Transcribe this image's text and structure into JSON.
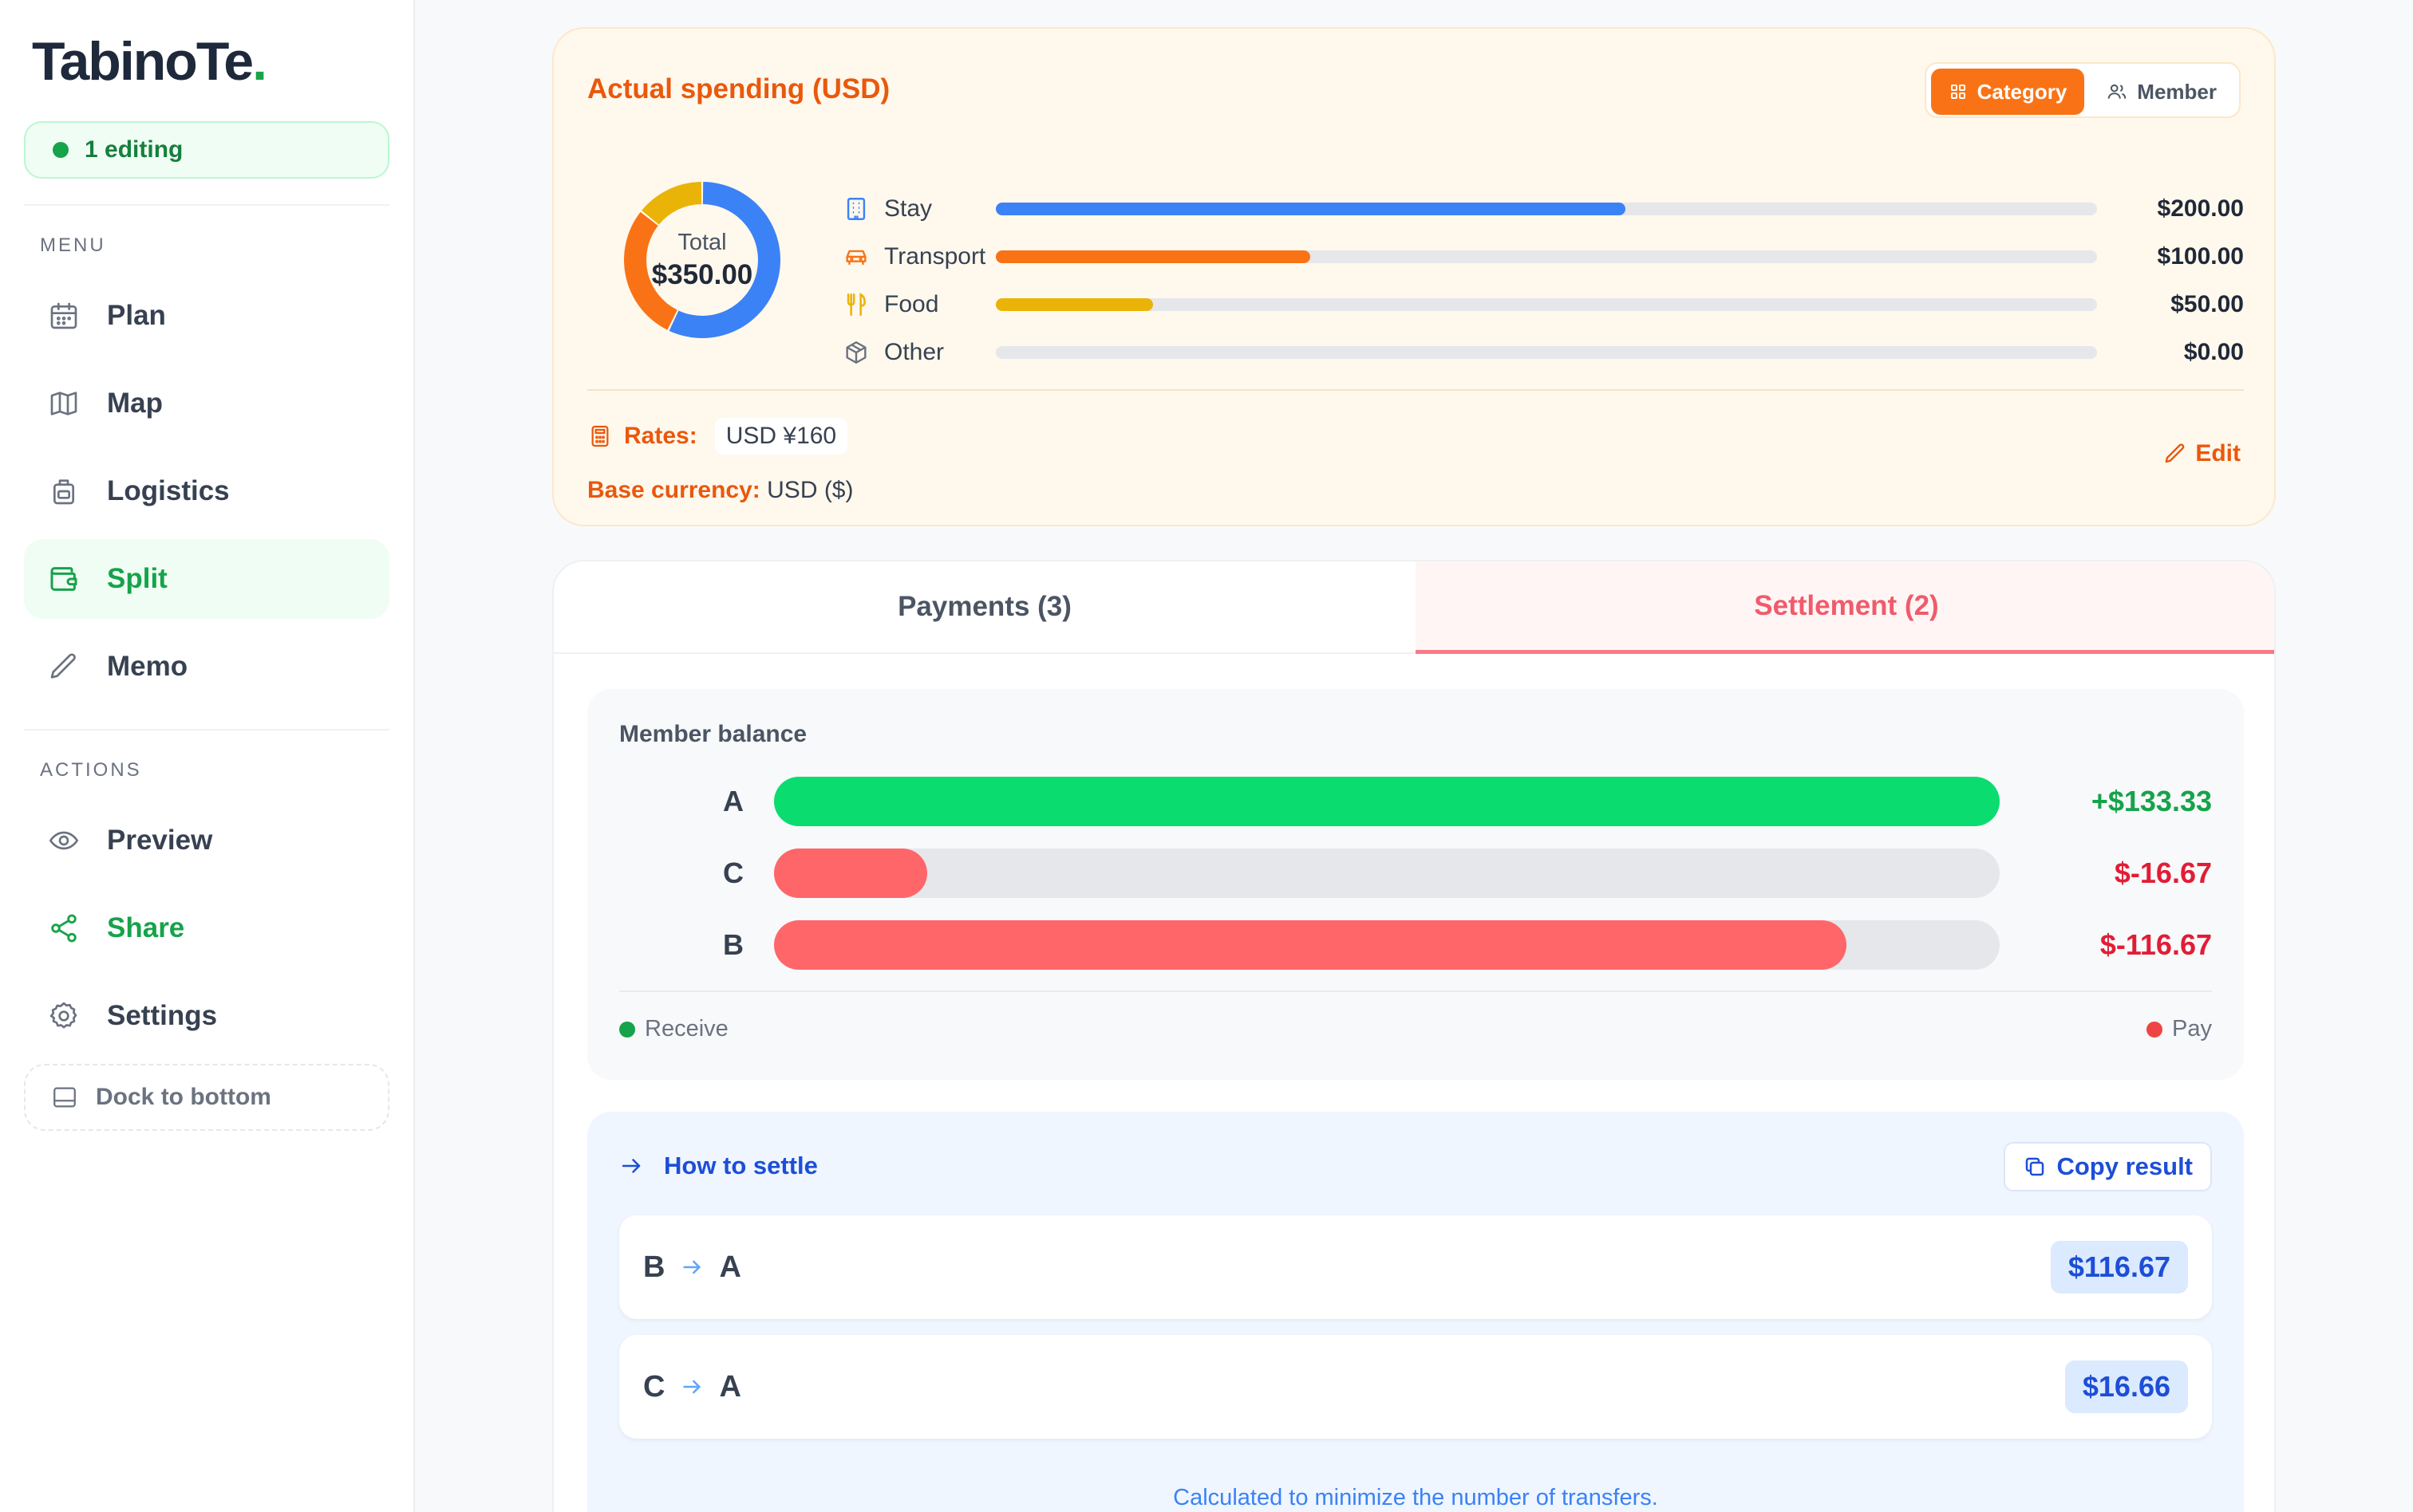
{
  "app": {
    "logo_text": "TabinoTe",
    "logo_dot": "."
  },
  "status": {
    "editing": "1 editing"
  },
  "sidebar": {
    "menu_label": "MENU",
    "actions_label": "ACTIONS",
    "menu": [
      {
        "label": "Plan",
        "icon": "calendar-icon"
      },
      {
        "label": "Map",
        "icon": "map-icon"
      },
      {
        "label": "Logistics",
        "icon": "luggage-icon"
      },
      {
        "label": "Split",
        "icon": "wallet-icon",
        "active": true
      },
      {
        "label": "Memo",
        "icon": "pencil-icon"
      }
    ],
    "actions": [
      {
        "label": "Preview",
        "icon": "eye-icon"
      },
      {
        "label": "Share",
        "icon": "share-icon"
      },
      {
        "label": "Settings",
        "icon": "gear-icon"
      }
    ],
    "dock_label": "Dock to bottom"
  },
  "spending": {
    "title": "Actual spending (USD)",
    "toggle": {
      "category": "Category",
      "member": "Member",
      "selected": "Category"
    },
    "total_label": "Total",
    "total_value": "$350.00",
    "categories": [
      {
        "name": "Stay",
        "amount": "$200.00",
        "value": 200,
        "color": "#3b82f6",
        "icon": "building-icon"
      },
      {
        "name": "Transport",
        "amount": "$100.00",
        "value": 100,
        "color": "#f97316",
        "icon": "car-icon"
      },
      {
        "name": "Food",
        "amount": "$50.00",
        "value": 50,
        "color": "#eab308",
        "icon": "utensils-icon"
      },
      {
        "name": "Other",
        "amount": "$0.00",
        "value": 0,
        "color": "#9ca3af",
        "icon": "box-icon"
      }
    ],
    "bar_max": 350,
    "rates_label": "Rates:",
    "rate_chip": "USD ¥160",
    "base_label": "Base currency:",
    "base_value": "USD ($)",
    "edit_label": "Edit"
  },
  "tabs": {
    "payments": "Payments (3)",
    "settlement": "Settlement (2)",
    "active": "settlement"
  },
  "balance": {
    "title": "Member balance",
    "members": [
      {
        "name": "A",
        "amount": "+$133.33",
        "value": 133.33,
        "type": "receive"
      },
      {
        "name": "C",
        "amount": "$-16.67",
        "value": -16.67,
        "type": "pay"
      },
      {
        "name": "B",
        "amount": "$-116.67",
        "value": -116.67,
        "type": "pay"
      }
    ],
    "bar_fraction": [
      1.0,
      0.125,
      0.875
    ],
    "legend_receive": "Receive",
    "legend_pay": "Pay",
    "colors": {
      "receive": "#0bdc6f",
      "pay": "#ff6669",
      "receive_text": "#16a34a",
      "pay_text": "#e11d36"
    }
  },
  "settle": {
    "title": "How to settle",
    "copy_label": "Copy result",
    "transfers": [
      {
        "from": "B",
        "to": "A",
        "amount": "$116.67"
      },
      {
        "from": "C",
        "to": "A",
        "amount": "$16.66"
      }
    ],
    "note": "Calculated to minimize the number of transfers."
  }
}
